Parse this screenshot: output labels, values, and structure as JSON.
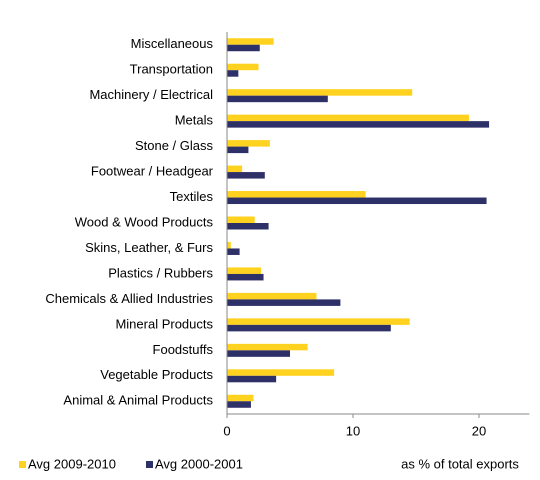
{
  "chart_data": {
    "type": "hbar",
    "categories": [
      "Miscellaneous",
      "Transportation",
      "Machinery / Electrical",
      "Metals",
      "Stone / Glass",
      "Footwear / Headgear",
      "Textiles",
      "Wood & Wood Products",
      "Skins, Leather, & Furs",
      "Plastics / Rubbers",
      "Chemicals & Allied Industries",
      "Mineral Products",
      "Foodstuffs",
      "Vegetable Products",
      "Animal & Animal Products"
    ],
    "series": [
      {
        "name": "Avg 2009-2010",
        "color": "#ffd21f",
        "values": [
          3.7,
          2.5,
          14.7,
          19.2,
          3.4,
          1.2,
          11.0,
          2.2,
          0.3,
          2.7,
          7.1,
          14.5,
          6.4,
          8.5,
          2.1
        ]
      },
      {
        "name": "Avg 2000-2001",
        "color": "#2e3168",
        "values": [
          2.6,
          0.9,
          8.0,
          20.8,
          1.7,
          3.0,
          20.6,
          3.3,
          1.0,
          2.9,
          9.0,
          13.0,
          5.0,
          3.9,
          1.9
        ]
      }
    ],
    "xlim": [
      0,
      24
    ],
    "xticks": [
      0,
      10,
      20
    ],
    "annotation": "as % of total exports"
  }
}
